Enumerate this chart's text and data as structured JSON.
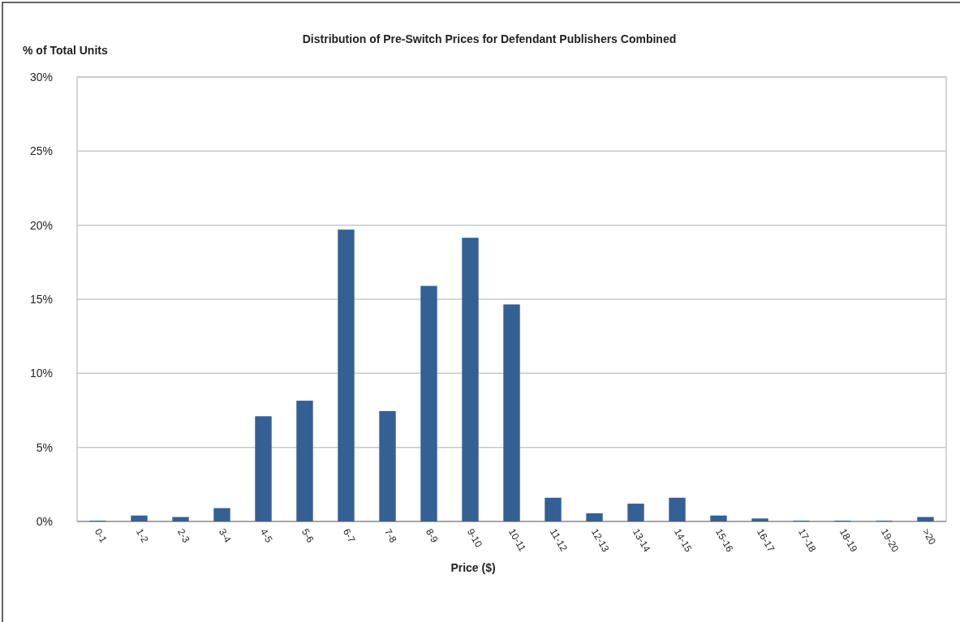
{
  "chart_data": {
    "type": "bar",
    "title": "Distribution of Pre-Switch Prices for Defendant Publishers Combined",
    "xlabel": "Price ($)",
    "ylabel": "% of Total Units",
    "categories": [
      "0-1",
      "1-2",
      "2-3",
      "3-4",
      "4-5",
      "5-6",
      "6-7",
      "7-8",
      "8-9",
      "9-10",
      "10-11",
      "11-12",
      "12-13",
      "13-14",
      "14-15",
      "15-16",
      "16-17",
      "17-18",
      "18-19",
      "19-20",
      ">20"
    ],
    "values": [
      0.05,
      0.4,
      0.3,
      0.9,
      7.1,
      8.15,
      19.7,
      7.45,
      15.9,
      19.15,
      14.65,
      1.6,
      0.55,
      1.2,
      1.6,
      0.4,
      0.2,
      0.05,
      0.05,
      0.05,
      0.3
    ],
    "color": "#346094",
    "ylim": [
      0,
      30
    ],
    "yticks": [
      {
        "value": 0,
        "label": "0%"
      },
      {
        "value": 5,
        "label": "5%"
      },
      {
        "value": 10,
        "label": "10%"
      },
      {
        "value": 15,
        "label": "15%"
      },
      {
        "value": 20,
        "label": "20%"
      },
      {
        "value": 25,
        "label": "25%"
      },
      {
        "value": 30,
        "label": "30%"
      }
    ],
    "grid": "y"
  }
}
